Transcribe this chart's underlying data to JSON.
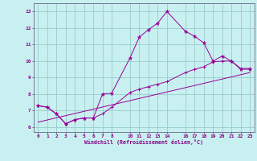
{
  "xlabel": "Windchill (Refroidissement éolien,°C)",
  "background_color": "#c8f0f0",
  "line_color": "#990099",
  "grid_color": "#99cccc",
  "x_ticks": [
    0,
    1,
    2,
    3,
    4,
    5,
    6,
    7,
    8,
    10,
    11,
    12,
    13,
    14,
    16,
    17,
    18,
    19,
    20,
    21,
    22,
    23
  ],
  "y_ticks": [
    6,
    7,
    8,
    9,
    10,
    11,
    12,
    13
  ],
  "xlim": [
    -0.5,
    23.5
  ],
  "ylim": [
    5.7,
    13.5
  ],
  "line1": {
    "x": [
      0,
      1,
      2,
      3,
      4,
      5,
      6,
      7,
      8,
      10,
      11,
      12,
      13,
      14,
      16,
      17,
      18,
      19,
      20,
      21,
      22,
      23
    ],
    "y": [
      7.3,
      7.2,
      6.8,
      6.2,
      6.45,
      6.55,
      6.55,
      8.0,
      8.05,
      10.2,
      11.45,
      11.9,
      12.3,
      13.0,
      11.8,
      11.5,
      11.1,
      10.0,
      10.3,
      10.0,
      9.5,
      9.5
    ]
  },
  "line2": {
    "x": [
      0,
      1,
      2,
      3,
      4,
      5,
      6,
      7,
      8,
      10,
      11,
      12,
      13,
      14,
      16,
      17,
      18,
      19,
      20,
      21,
      22,
      23
    ],
    "y": [
      7.3,
      7.2,
      6.8,
      6.2,
      6.45,
      6.55,
      6.55,
      6.8,
      7.2,
      8.1,
      8.3,
      8.45,
      8.6,
      8.75,
      9.3,
      9.5,
      9.65,
      9.95,
      10.0,
      10.0,
      9.55,
      9.55
    ]
  },
  "line3": {
    "x": [
      0,
      23
    ],
    "y": [
      6.3,
      9.3
    ]
  }
}
